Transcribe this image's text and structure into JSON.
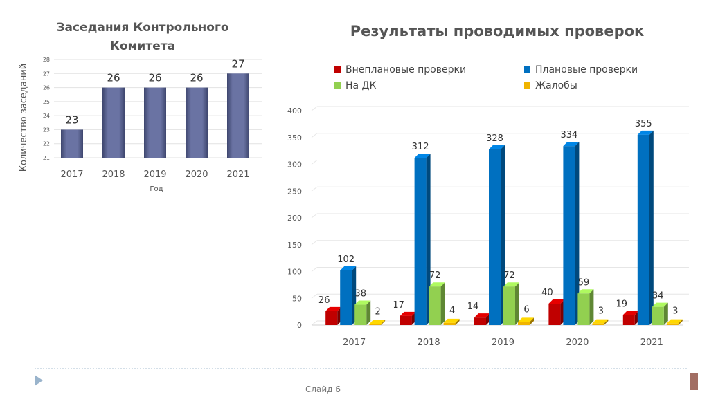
{
  "footer": {
    "slide_label": "Слайд 6"
  },
  "colors": {
    "left_bar": "#5f6898",
    "red": "#c00000",
    "blue": "#0070c0",
    "green": "#92d050",
    "yellow": "#f0b400"
  },
  "chart_data": [
    {
      "type": "bar",
      "title_lines": [
        "Заседания Контрольного",
        "Комитета"
      ],
      "xlabel": "Год",
      "ylabel": "Количество заседаний",
      "categories": [
        "2017",
        "2018",
        "2019",
        "2020",
        "2021"
      ],
      "values": [
        23,
        26,
        26,
        26,
        27
      ],
      "ylim": [
        21,
        28
      ],
      "yticks": [
        21,
        22,
        23,
        24,
        25,
        26,
        27,
        28
      ],
      "grid": true
    },
    {
      "type": "bar",
      "title": "Результаты проводимых проверок",
      "categories": [
        "2017",
        "2018",
        "2019",
        "2020",
        "2021"
      ],
      "ylim": [
        0,
        400
      ],
      "yticks": [
        0,
        50,
        100,
        150,
        200,
        250,
        300,
        350,
        400
      ],
      "legend_position": "top",
      "grid": true,
      "series": [
        {
          "name": "Внеплановые проверки",
          "color": "#c00000",
          "values": [
            26,
            17,
            14,
            40,
            19
          ]
        },
        {
          "name": "Плановые проверки",
          "color": "#0070c0",
          "values": [
            102,
            312,
            328,
            334,
            355
          ]
        },
        {
          "name": "На ДК",
          "color": "#92d050",
          "values": [
            38,
            72,
            72,
            59,
            34
          ]
        },
        {
          "name": "Жалобы",
          "color": "#f0b400",
          "values": [
            2,
            4,
            6,
            3,
            3
          ]
        }
      ]
    }
  ]
}
